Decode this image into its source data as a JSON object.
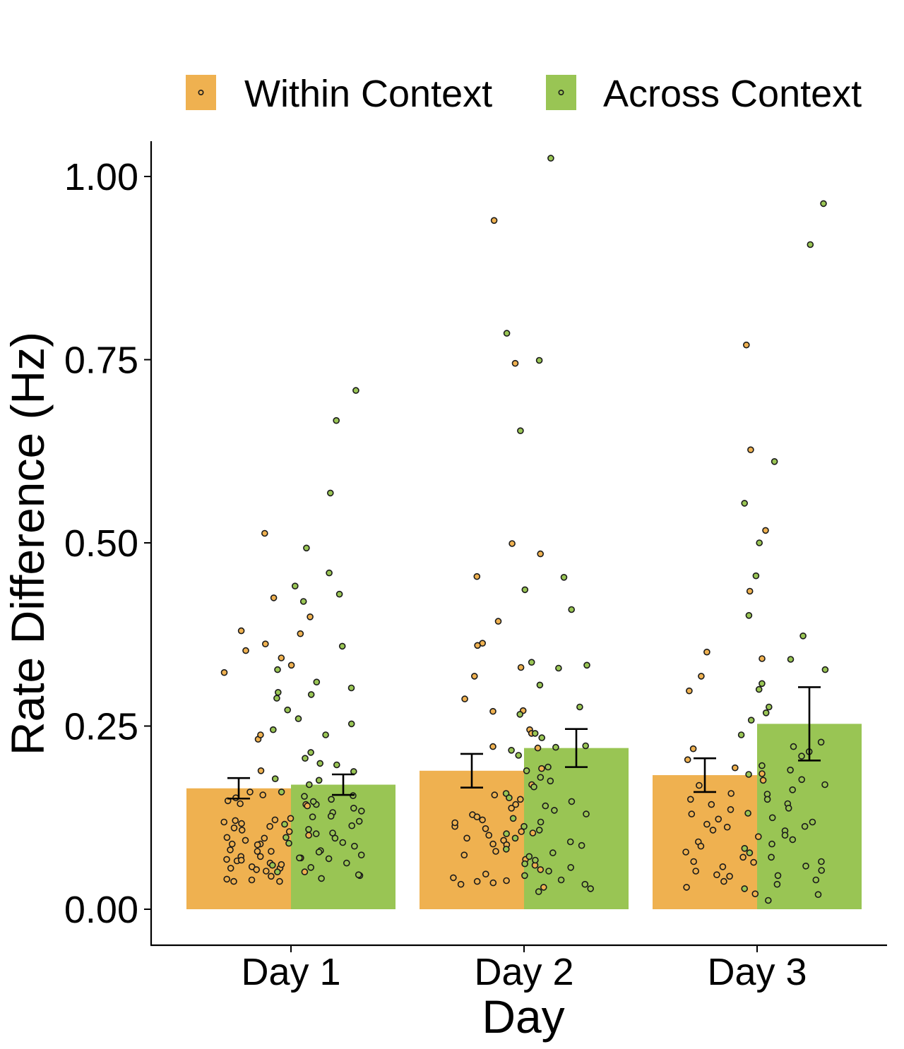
{
  "chart_data": {
    "type": "bar",
    "title": "",
    "xlabel": "Day",
    "ylabel": "Rate Difference (Hz)",
    "ylim": [
      -0.05,
      1.05
    ],
    "yticks": [
      "0.00",
      "0.25",
      "0.50",
      "0.75",
      "1.00"
    ],
    "categories": [
      "Day 1",
      "Day 2",
      "Day 3"
    ],
    "legend_position": "top",
    "grid": false,
    "series": [
      {
        "name": "Within Context",
        "color": "#EFB150",
        "values": [
          0.165,
          0.189,
          0.183
        ],
        "error": [
          0.014,
          0.023,
          0.023
        ],
        "points": [
          [
            0.513,
            0.045,
            0.081,
            0.108,
            0.089,
            0.052,
            0.041,
            0.376,
            0.425,
            0.079,
            0.353,
            0.333,
            0.056,
            0.068,
            0.362,
            0.38,
            0.061,
            0.111,
            0.079,
            0.097,
            0.152,
            0.323,
            0.143,
            0.101,
            0.056,
            0.072,
            0.141,
            0.066,
            0.232,
            0.063,
            0.343,
            0.094,
            0.121,
            0.399,
            0.238,
            0.072,
            0.113,
            0.16,
            0.038,
            0.124,
            0.058,
            0.04,
            0.098,
            0.051,
            0.117,
            0.07,
            0.156,
            0.067,
            0.122,
            0.054,
            0.106,
            0.038,
            0.089,
            0.144,
            0.189,
            0.148,
            0.119,
            0.088
          ],
          [
            0.745,
            0.499,
            0.485,
            0.363,
            0.27,
            0.393,
            0.222,
            0.245,
            0.94,
            0.089,
            0.454,
            0.318,
            0.33,
            0.287,
            0.36,
            0.271,
            0.24,
            0.192,
            0.22,
            0.17,
            0.106,
            0.138,
            0.094,
            0.113,
            0.122,
            0.11,
            0.129,
            0.101,
            0.143,
            0.15,
            0.038,
            0.054,
            0.043,
            0.048,
            0.039,
            0.036,
            0.034,
            0.03,
            0.156,
            0.104,
            0.088,
            0.079,
            0.074,
            0.068,
            0.06,
            0.126,
            0.118,
            0.097
          ],
          [
            0.627,
            0.434,
            0.77,
            0.517,
            0.351,
            0.342,
            0.318,
            0.298,
            0.219,
            0.204,
            0.193,
            0.185,
            0.176,
            0.169,
            0.158,
            0.15,
            0.143,
            0.136,
            0.13,
            0.123,
            0.116,
            0.108,
            0.099,
            0.092,
            0.086,
            0.078,
            0.071,
            0.065,
            0.058,
            0.052,
            0.045,
            0.038,
            0.03,
            0.021,
            0.112,
            0.064,
            0.047
          ]
        ]
      },
      {
        "name": "Across Context",
        "color": "#99C554",
        "values": [
          0.17,
          0.22,
          0.253
        ],
        "error": [
          0.014,
          0.026,
          0.05
        ],
        "points": [
          [
            0.708,
            0.667,
            0.459,
            0.441,
            0.42,
            0.327,
            0.302,
            0.296,
            0.288,
            0.272,
            0.26,
            0.245,
            0.238,
            0.214,
            0.206,
            0.199,
            0.188,
            0.176,
            0.17,
            0.16,
            0.155,
            0.15,
            0.143,
            0.138,
            0.132,
            0.126,
            0.12,
            0.114,
            0.109,
            0.103,
            0.097,
            0.091,
            0.086,
            0.08,
            0.074,
            0.069,
            0.063,
            0.057,
            0.051,
            0.046,
            0.042,
            0.568,
            0.493,
            0.43,
            0.359,
            0.31,
            0.293,
            0.253,
            0.197,
            0.178,
            0.154,
            0.147,
            0.134,
            0.127,
            0.116,
            0.104,
            0.098,
            0.09,
            0.078,
            0.07,
            0.06,
            0.047
          ],
          [
            1.025,
            0.786,
            0.749,
            0.653,
            0.453,
            0.436,
            0.409,
            0.337,
            0.333,
            0.329,
            0.306,
            0.276,
            0.266,
            0.24,
            0.234,
            0.223,
            0.221,
            0.217,
            0.21,
            0.194,
            0.189,
            0.18,
            0.175,
            0.167,
            0.158,
            0.152,
            0.147,
            0.141,
            0.135,
            0.13,
            0.124,
            0.119,
            0.113,
            0.108,
            0.103,
            0.097,
            0.092,
            0.087,
            0.082,
            0.077,
            0.072,
            0.067,
            0.062,
            0.057,
            0.052,
            0.046,
            0.04,
            0.034,
            0.028,
            0.024
          ],
          [
            0.963,
            0.907,
            0.611,
            0.554,
            0.455,
            0.401,
            0.373,
            0.341,
            0.327,
            0.308,
            0.276,
            0.268,
            0.258,
            0.228,
            0.222,
            0.215,
            0.209,
            0.196,
            0.19,
            0.184,
            0.177,
            0.17,
            0.163,
            0.157,
            0.15,
            0.144,
            0.138,
            0.131,
            0.125,
            0.119,
            0.113,
            0.107,
            0.101,
            0.095,
            0.089,
            0.083,
            0.077,
            0.071,
            0.065,
            0.059,
            0.053,
            0.046,
            0.04,
            0.034,
            0.028,
            0.02,
            0.012,
            0.5,
            0.3,
            0.238
          ]
        ]
      }
    ]
  }
}
